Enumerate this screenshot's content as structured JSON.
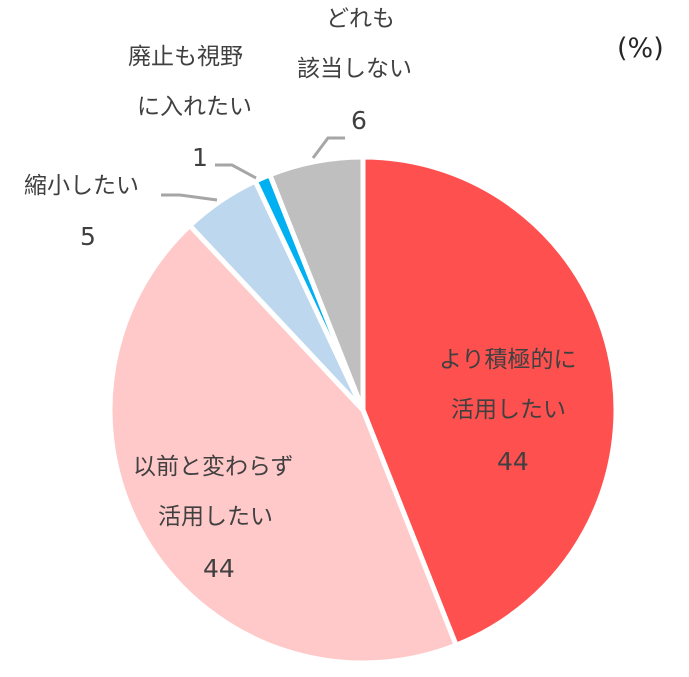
{
  "unit_label": "(%)",
  "chart_data": {
    "type": "pie",
    "title": "",
    "unit": "%",
    "start_angle_deg": 0,
    "direction": "clockwise",
    "categories": [
      "より積極的に活用したい",
      "以前と変わらず活用したい",
      "縮小したい",
      "廃止も視野に入れたい",
      "どれも該当しない"
    ],
    "values": [
      44,
      44,
      5,
      1,
      6
    ],
    "colors": [
      "#FF5050",
      "#FFC9C9",
      "#BDD7EE",
      "#00B0F0",
      "#BFBFBF"
    ],
    "legend": "none",
    "data_labels": "category and value"
  },
  "labels": {
    "more_active": {
      "line1": "より積極的に",
      "line2": "活用したい",
      "value": "44"
    },
    "unchanged": {
      "line1": "以前と変わらず",
      "line2": "活用したい",
      "value": "44"
    },
    "reduce": {
      "line1": "縮小したい",
      "value": "5"
    },
    "abolish": {
      "line1": "廃止も視野",
      "line2": "に入れたい",
      "value": "1"
    },
    "none": {
      "line1": "どれも",
      "line2": "該当しない",
      "value": "6"
    }
  }
}
